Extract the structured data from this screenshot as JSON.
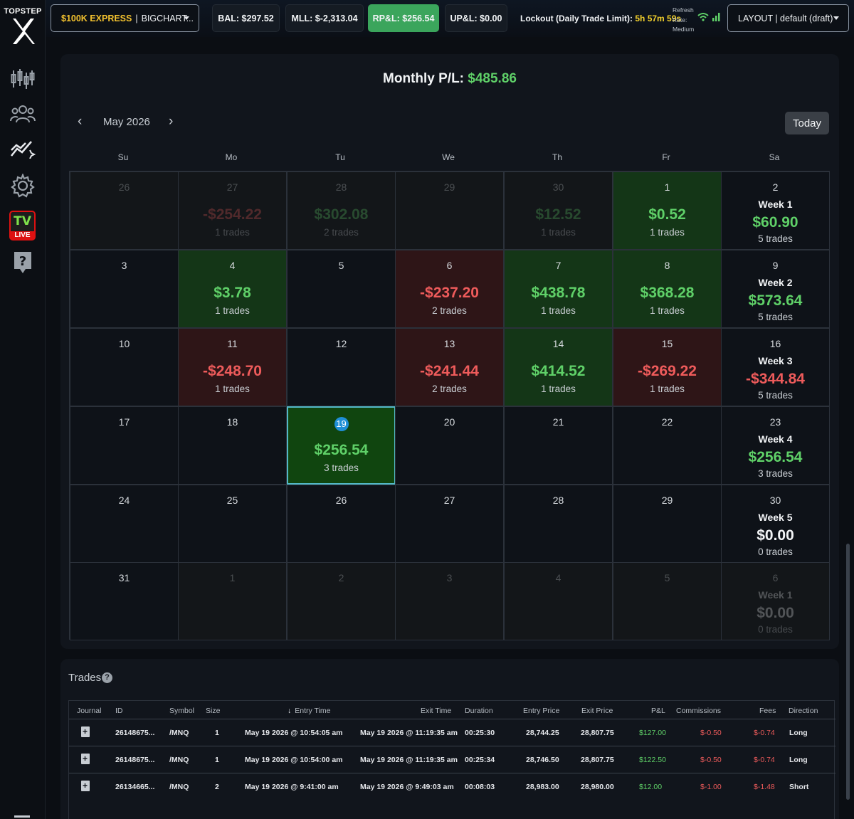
{
  "sidebar": {
    "logo_text": "TOPSTEP",
    "logo_mark": "X",
    "tv_label": "TV",
    "live_label": "LIVE",
    "icons": [
      "candlestick-chart-icon",
      "community-icon",
      "analytics-sparkle-icon",
      "settings-gear-icon",
      "tradingview-live-icon",
      "help-icon"
    ]
  },
  "topbar": {
    "account_prefix": "$100K EXPRESS",
    "account_sep": "|",
    "account_name": "BIGCHART...",
    "bal": "BAL: $297.52",
    "mll": "MLL: $-2,313.04",
    "rpl": "RP&L: $256.54",
    "upl": "UP&L: $0.00",
    "lockout_label": "Lockout (Daily Trade Limit):",
    "lockout_time": "5h 57m 59s",
    "refresh_lines": [
      "Refresh",
      "Rate:",
      "Medium"
    ],
    "layout": "LAYOUT | default (draft)",
    "accent_green": "#3ba55c",
    "accent_gold": "#f2c12e"
  },
  "calendar": {
    "monthly_label": "Monthly P/L:",
    "monthly_value": "$485.86",
    "month": "May 2026",
    "prev": "‹",
    "next": "›",
    "today_btn": "Today",
    "weekdays": [
      "Su",
      "Mo",
      "Tu",
      "We",
      "Th",
      "Fr",
      "Sa"
    ],
    "weeks": [
      [
        {
          "day": "26",
          "out": true
        },
        {
          "day": "27",
          "out": true,
          "amt": "-$254.22",
          "trades": "1 trades",
          "tone": "r"
        },
        {
          "day": "28",
          "out": true,
          "amt": "$302.08",
          "trades": "2 trades",
          "tone": "g"
        },
        {
          "day": "29",
          "out": true
        },
        {
          "day": "30",
          "out": true,
          "amt": "$12.52",
          "trades": "1 trades",
          "tone": "g"
        },
        {
          "day": "1",
          "amt": "$0.52",
          "trades": "1 trades",
          "tone": "g",
          "bg": "pos"
        },
        {
          "day": "2",
          "week": "Week 1",
          "amt": "$60.90",
          "trades": "5 trades",
          "tone": "g"
        }
      ],
      [
        {
          "day": "3"
        },
        {
          "day": "4",
          "amt": "$3.78",
          "trades": "1 trades",
          "tone": "g",
          "bg": "pos"
        },
        {
          "day": "5"
        },
        {
          "day": "6",
          "amt": "-$237.20",
          "trades": "2 trades",
          "tone": "r",
          "bg": "neg"
        },
        {
          "day": "7",
          "amt": "$438.78",
          "trades": "1 trades",
          "tone": "g",
          "bg": "pos"
        },
        {
          "day": "8",
          "amt": "$368.28",
          "trades": "1 trades",
          "tone": "g",
          "bg": "pos"
        },
        {
          "day": "9",
          "week": "Week 2",
          "amt": "$573.64",
          "trades": "5 trades",
          "tone": "g"
        }
      ],
      [
        {
          "day": "10"
        },
        {
          "day": "11",
          "amt": "-$248.70",
          "trades": "1 trades",
          "tone": "r",
          "bg": "neg"
        },
        {
          "day": "12"
        },
        {
          "day": "13",
          "amt": "-$241.44",
          "trades": "2 trades",
          "tone": "r",
          "bg": "neg"
        },
        {
          "day": "14",
          "amt": "$414.52",
          "trades": "1 trades",
          "tone": "g",
          "bg": "pos"
        },
        {
          "day": "15",
          "amt": "-$269.22",
          "trades": "1 trades",
          "tone": "r",
          "bg": "neg"
        },
        {
          "day": "16",
          "week": "Week 3",
          "amt": "-$344.84",
          "trades": "5 trades",
          "tone": "r"
        }
      ],
      [
        {
          "day": "17"
        },
        {
          "day": "18"
        },
        {
          "day": "19",
          "amt": "$256.54",
          "trades": "3 trades",
          "tone": "g",
          "bg": "sel",
          "selected": true
        },
        {
          "day": "20"
        },
        {
          "day": "21"
        },
        {
          "day": "22"
        },
        {
          "day": "23",
          "week": "Week 4",
          "amt": "$256.54",
          "trades": "3 trades",
          "tone": "g"
        }
      ],
      [
        {
          "day": "24"
        },
        {
          "day": "25"
        },
        {
          "day": "26"
        },
        {
          "day": "27"
        },
        {
          "day": "28"
        },
        {
          "day": "29"
        },
        {
          "day": "30",
          "week": "Week 5",
          "amt": "$0.00",
          "trades": "0 trades",
          "tone": "w"
        }
      ],
      [
        {
          "day": "31"
        },
        {
          "day": "1",
          "out": true
        },
        {
          "day": "2",
          "out": true
        },
        {
          "day": "3",
          "out": true
        },
        {
          "day": "4",
          "out": true
        },
        {
          "day": "5",
          "out": true
        },
        {
          "day": "6",
          "out": true,
          "week": "Week 1",
          "amt": "$0.00",
          "trades": "0 trades",
          "tone": "w"
        }
      ]
    ]
  },
  "trades": {
    "title": "Trades",
    "help": "?",
    "columns": [
      "Journal",
      "ID",
      "Symbol",
      "Size",
      "Entry Time",
      "Exit Time",
      "Duration",
      "Entry Price",
      "Exit Price",
      "P&L",
      "Commissions",
      "Fees",
      "Direction"
    ],
    "sort_arrow": "↓",
    "rows": [
      {
        "id": "26148675...",
        "symbol": "/MNQ",
        "size": "1",
        "entry_time": "May 19 2026 @ 10:54:05 am",
        "exit_time": "May 19 2026 @ 11:19:35 am",
        "duration": "00:25:30",
        "entry_price": "28,744.25",
        "exit_price": "28,807.75",
        "pnl": "$127.00",
        "commissions": "$-0.50",
        "fees": "$-0.74",
        "direction": "Long"
      },
      {
        "id": "26148675...",
        "symbol": "/MNQ",
        "size": "1",
        "entry_time": "May 19 2026 @ 10:54:00 am",
        "exit_time": "May 19 2026 @ 11:19:35 am",
        "duration": "00:25:34",
        "entry_price": "28,746.50",
        "exit_price": "28,807.75",
        "pnl": "$122.50",
        "commissions": "$-0.50",
        "fees": "$-0.74",
        "direction": "Long"
      },
      {
        "id": "26134665...",
        "symbol": "/MNQ",
        "size": "2",
        "entry_time": "May 19 2026 @ 9:41:00 am",
        "exit_time": "May 19 2026 @ 9:49:03 am",
        "duration": "00:08:03",
        "entry_price": "28,983.00",
        "exit_price": "28,980.00",
        "pnl": "$12.00",
        "commissions": "$-1.00",
        "fees": "$-1.48",
        "direction": "Short"
      }
    ]
  }
}
